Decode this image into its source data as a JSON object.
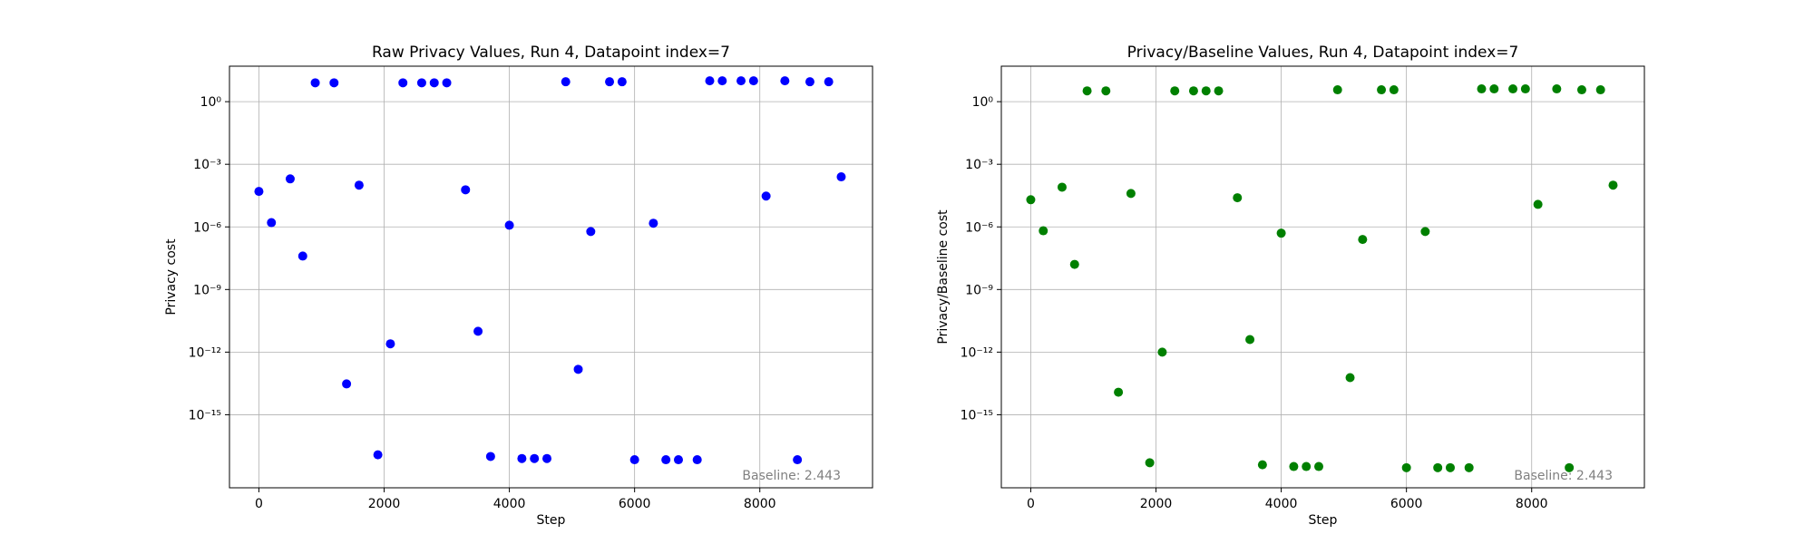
{
  "chart_data": [
    {
      "type": "scatter",
      "title": "Raw Privacy Values, Run 4, Datapoint index=7",
      "xlabel": "Step",
      "ylabel": "Privacy cost",
      "yscale": "log",
      "grid": true,
      "color": "#0000ff",
      "xlim": [
        -470,
        9800
      ],
      "ylim_exp": [
        -18.5,
        1.7
      ],
      "x_ticks": [
        0,
        2000,
        4000,
        6000,
        8000
      ],
      "y_tick_exps": [
        0,
        -3,
        -6,
        -9,
        -12,
        -15
      ],
      "annotation": "Baseline: 2.443",
      "points": [
        {
          "x": 0,
          "y": 5e-05
        },
        {
          "x": 200,
          "y": 1.6e-06
        },
        {
          "x": 500,
          "y": 0.0002
        },
        {
          "x": 700,
          "y": 4e-08
        },
        {
          "x": 900,
          "y": 8
        },
        {
          "x": 1200,
          "y": 8
        },
        {
          "x": 1400,
          "y": 3e-14
        },
        {
          "x": 1600,
          "y": 0.0001
        },
        {
          "x": 1900,
          "y": 1.2e-17
        },
        {
          "x": 2100,
          "y": 2.5e-12
        },
        {
          "x": 2300,
          "y": 8
        },
        {
          "x": 2600,
          "y": 8
        },
        {
          "x": 2800,
          "y": 8
        },
        {
          "x": 3000,
          "y": 8
        },
        {
          "x": 3300,
          "y": 6e-05
        },
        {
          "x": 3500,
          "y": 1e-11
        },
        {
          "x": 3700,
          "y": 1e-17
        },
        {
          "x": 4000,
          "y": 1.2e-06
        },
        {
          "x": 4200,
          "y": 8e-18
        },
        {
          "x": 4400,
          "y": 8e-18
        },
        {
          "x": 4600,
          "y": 8e-18
        },
        {
          "x": 4900,
          "y": 9
        },
        {
          "x": 5100,
          "y": 1.5e-13
        },
        {
          "x": 5300,
          "y": 6e-07
        },
        {
          "x": 5600,
          "y": 9
        },
        {
          "x": 5800,
          "y": 9
        },
        {
          "x": 6000,
          "y": 7e-18
        },
        {
          "x": 6300,
          "y": 1.5e-06
        },
        {
          "x": 6500,
          "y": 7e-18
        },
        {
          "x": 6700,
          "y": 7e-18
        },
        {
          "x": 7000,
          "y": 7e-18
        },
        {
          "x": 7200,
          "y": 10
        },
        {
          "x": 7400,
          "y": 10
        },
        {
          "x": 7700,
          "y": 10
        },
        {
          "x": 7900,
          "y": 10
        },
        {
          "x": 8100,
          "y": 3e-05
        },
        {
          "x": 8400,
          "y": 10
        },
        {
          "x": 8600,
          "y": 7e-18
        },
        {
          "x": 8800,
          "y": 9
        },
        {
          "x": 9100,
          "y": 9
        },
        {
          "x": 9300,
          "y": 0.00025
        }
      ]
    },
    {
      "type": "scatter",
      "title": "Privacy/Baseline Values, Run 4, Datapoint index=7",
      "xlabel": "Step",
      "ylabel": "Privacy/Baseline cost",
      "yscale": "log",
      "grid": true,
      "color": "#008000",
      "xlim": [
        -470,
        9800
      ],
      "ylim_exp": [
        -18.5,
        1.7
      ],
      "x_ticks": [
        0,
        2000,
        4000,
        6000,
        8000
      ],
      "y_tick_exps": [
        0,
        -3,
        -6,
        -9,
        -12,
        -15
      ],
      "annotation": "Baseline: 2.443",
      "points": [
        {
          "x": 0,
          "y": 2e-05
        },
        {
          "x": 200,
          "y": 6.5e-07
        },
        {
          "x": 500,
          "y": 8e-05
        },
        {
          "x": 700,
          "y": 1.6e-08
        },
        {
          "x": 900,
          "y": 3.3
        },
        {
          "x": 1200,
          "y": 3.3
        },
        {
          "x": 1400,
          "y": 1.2e-14
        },
        {
          "x": 1600,
          "y": 4e-05
        },
        {
          "x": 1900,
          "y": 5e-18
        },
        {
          "x": 2100,
          "y": 1e-12
        },
        {
          "x": 2300,
          "y": 3.3
        },
        {
          "x": 2600,
          "y": 3.3
        },
        {
          "x": 2800,
          "y": 3.3
        },
        {
          "x": 3000,
          "y": 3.3
        },
        {
          "x": 3300,
          "y": 2.5e-05
        },
        {
          "x": 3500,
          "y": 4e-12
        },
        {
          "x": 3700,
          "y": 4e-18
        },
        {
          "x": 4000,
          "y": 5e-07
        },
        {
          "x": 4200,
          "y": 3.3e-18
        },
        {
          "x": 4400,
          "y": 3.3e-18
        },
        {
          "x": 4600,
          "y": 3.3e-18
        },
        {
          "x": 4900,
          "y": 3.7
        },
        {
          "x": 5100,
          "y": 6e-14
        },
        {
          "x": 5300,
          "y": 2.5e-07
        },
        {
          "x": 5600,
          "y": 3.7
        },
        {
          "x": 5800,
          "y": 3.7
        },
        {
          "x": 6000,
          "y": 2.9e-18
        },
        {
          "x": 6300,
          "y": 6e-07
        },
        {
          "x": 6500,
          "y": 2.9e-18
        },
        {
          "x": 6700,
          "y": 2.9e-18
        },
        {
          "x": 7000,
          "y": 2.9e-18
        },
        {
          "x": 7200,
          "y": 4.1
        },
        {
          "x": 7400,
          "y": 4.1
        },
        {
          "x": 7700,
          "y": 4.1
        },
        {
          "x": 7900,
          "y": 4.1
        },
        {
          "x": 8100,
          "y": 1.2e-05
        },
        {
          "x": 8400,
          "y": 4.1
        },
        {
          "x": 8600,
          "y": 2.9e-18
        },
        {
          "x": 8800,
          "y": 3.7
        },
        {
          "x": 9100,
          "y": 3.7
        },
        {
          "x": 9300,
          "y": 0.0001
        }
      ]
    }
  ]
}
